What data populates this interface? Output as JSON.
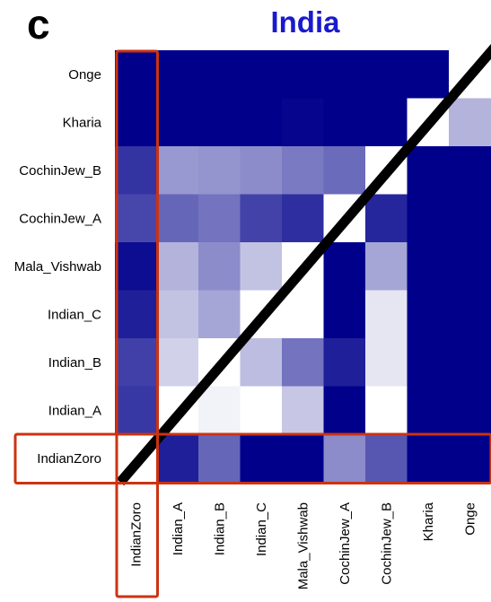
{
  "panel_label": "c",
  "chart_data": {
    "type": "heatmap",
    "title": "India",
    "rows": [
      "Onge",
      "Kharia",
      "CochinJew_B",
      "CochinJew_A",
      "Mala_Vishwab",
      "Indian_C",
      "Indian_B",
      "Indian_A",
      "IndianZoro"
    ],
    "columns": [
      "IndianZoro",
      "Indian_A",
      "Indian_B",
      "Indian_C",
      "Mala_Vishwab",
      "CochinJew_A",
      "CochinJew_B",
      "Kharia",
      "Onge"
    ],
    "values": [
      [
        1.0,
        1.0,
        1.0,
        1.0,
        1.0,
        1.0,
        1.0,
        1.0,
        0.0
      ],
      [
        1.0,
        1.0,
        1.0,
        1.0,
        0.98,
        1.0,
        1.0,
        0.0,
        0.3
      ],
      [
        0.8,
        0.4,
        0.42,
        0.45,
        0.52,
        0.58,
        0.0,
        1.0,
        1.0
      ],
      [
        0.72,
        0.6,
        0.55,
        0.74,
        0.82,
        0.0,
        0.85,
        1.0,
        1.0
      ],
      [
        0.95,
        0.3,
        0.45,
        0.24,
        0.0,
        1.0,
        0.35,
        1.0,
        1.0
      ],
      [
        0.88,
        0.24,
        0.35,
        0.0,
        0.0,
        1.0,
        0.1,
        1.0,
        1.0
      ],
      [
        0.75,
        0.18,
        0.0,
        0.26,
        0.55,
        0.88,
        0.1,
        1.0,
        1.0
      ],
      [
        0.78,
        0.0,
        0.05,
        0.0,
        0.22,
        1.0,
        0.0,
        1.0,
        1.0
      ],
      [
        0.0,
        0.88,
        0.6,
        1.0,
        1.0,
        0.45,
        0.66,
        1.0,
        1.0
      ]
    ],
    "color_scale": {
      "low": "#ffffff",
      "high": "#00008b"
    },
    "highlight_color": "#cc3311",
    "highlighted_row": "IndianZoro",
    "highlighted_column": "IndianZoro",
    "diagonal_line": true
  }
}
